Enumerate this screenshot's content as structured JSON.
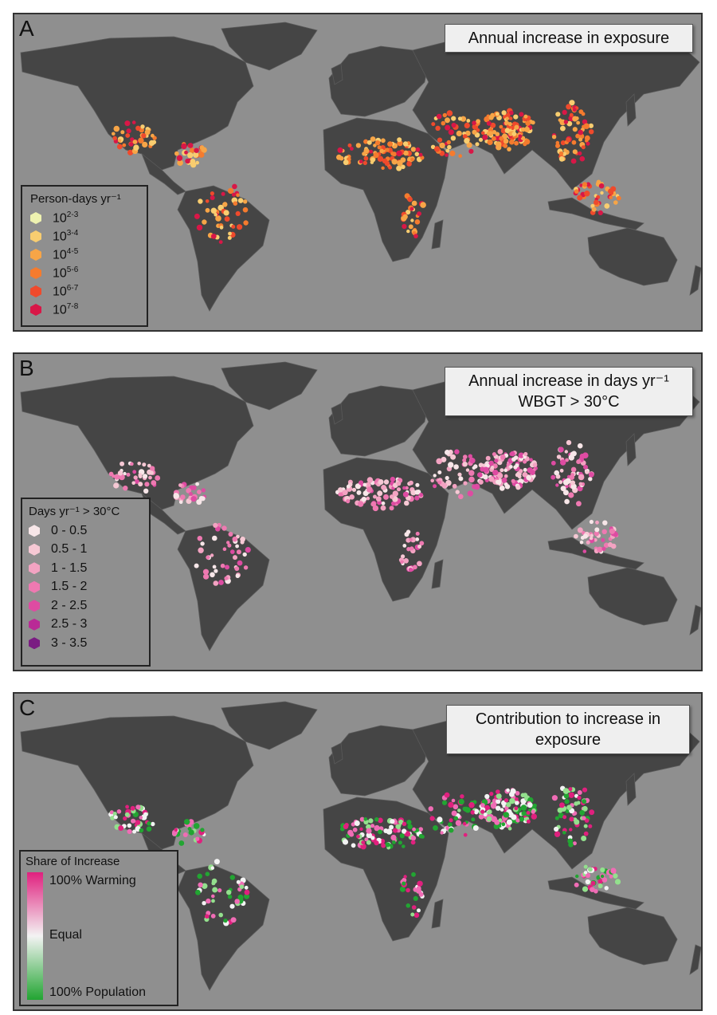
{
  "panels": [
    {
      "letter": "A",
      "title_lines": [
        "Annual increase in exposure"
      ],
      "legend": {
        "title": "Person-days yr⁻¹",
        "items": [
          {
            "base": "10",
            "exp": "2-3",
            "color": "#eef2b0"
          },
          {
            "base": "10",
            "exp": "3-4",
            "color": "#f8cd70"
          },
          {
            "base": "10",
            "exp": "4-5",
            "color": "#f7a547"
          },
          {
            "base": "10",
            "exp": "5-6",
            "color": "#f57b2e"
          },
          {
            "base": "10",
            "exp": "6-7",
            "color": "#ef4a2c"
          },
          {
            "base": "10",
            "exp": "7-8",
            "color": "#d81747"
          }
        ]
      }
    },
    {
      "letter": "B",
      "title_lines": [
        "Annual increase in days yr⁻¹",
        "WBGT > 30°C"
      ],
      "legend": {
        "title": "Days yr⁻¹ > 30°C",
        "items": [
          {
            "label": "0 - 0.5",
            "color": "#f7e6e8"
          },
          {
            "label": "0.5 - 1",
            "color": "#f6c8d4"
          },
          {
            "label": "1 - 1.5",
            "color": "#f3a3c2"
          },
          {
            "label": "1.5 - 2",
            "color": "#ee79b1"
          },
          {
            "label": "2 - 2.5",
            "color": "#de4ba2"
          },
          {
            "label": "2.5 - 3",
            "color": "#b92a96"
          },
          {
            "label": "3 - 3.5",
            "color": "#7a1c82"
          }
        ]
      }
    },
    {
      "letter": "C",
      "title_lines": [
        "Contribution to increase in",
        "exposure"
      ],
      "legend": {
        "title": "Share of Increase",
        "top_label": "100% Warming",
        "mid_label": "Equal",
        "bottom_label": "100% Population",
        "colors": [
          "#e0207e",
          "#f3f3f3",
          "#22a532"
        ]
      }
    }
  ]
}
